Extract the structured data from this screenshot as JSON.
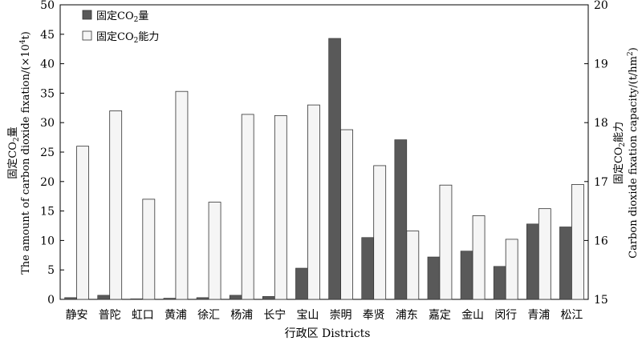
{
  "chart_data": {
    "type": "bar",
    "xlabel": "行政区 Districts",
    "ylabel_left": {
      "line1_prefix": "固定CO",
      "line1_sub": "2",
      "line1_suffix": "量",
      "line2_prefix": "The amount of carbon dioxide fixation/(×10",
      "line2_sup": "4",
      "line2_suffix": "t)"
    },
    "ylabel_right": {
      "line1_prefix": "固定CO",
      "line1_sub": "2",
      "line1_suffix": "能力",
      "line2_prefix": "Carbon dioxide fixation capacity/(t/hm",
      "line2_sup": "2",
      "line2_suffix": ")"
    },
    "ylim_left": [
      0,
      50
    ],
    "yticks_left": [
      0,
      5,
      10,
      15,
      20,
      25,
      30,
      35,
      40,
      45,
      50
    ],
    "ylim_right": [
      15,
      20
    ],
    "yticks_right": [
      15,
      16,
      17,
      18,
      19,
      20
    ],
    "legend_position": "top-left",
    "categories": [
      "静安",
      "普陀",
      "虹口",
      "黄浦",
      "徐汇",
      "杨浦",
      "长宁",
      "宝山",
      "崇明",
      "奉贤",
      "浦东",
      "嘉定",
      "金山",
      "闵行",
      "青浦",
      "松江"
    ],
    "series": [
      {
        "name_prefix": "固定CO",
        "name_sub": "2",
        "name_suffix": "量",
        "axis": "left",
        "color": "#595959",
        "values": [
          0.3,
          0.7,
          0.1,
          0.2,
          0.3,
          0.7,
          0.5,
          5.3,
          44.3,
          10.5,
          27.1,
          7.2,
          8.2,
          5.6,
          12.8,
          12.3
        ]
      },
      {
        "name_prefix": "固定CO",
        "name_sub": "2",
        "name_suffix": "能力",
        "axis": "right",
        "color": "#f5f5f5",
        "values": [
          17.6,
          18.2,
          16.7,
          18.53,
          16.65,
          18.14,
          18.12,
          18.3,
          17.88,
          17.27,
          16.16,
          16.94,
          16.42,
          16.02,
          16.54,
          16.95
        ]
      }
    ]
  }
}
